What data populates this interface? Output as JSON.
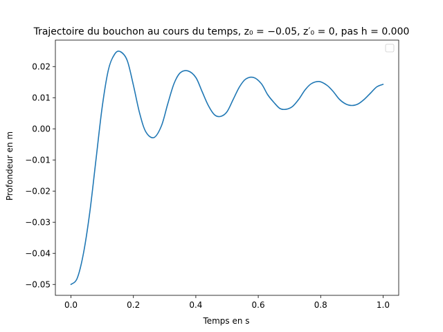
{
  "chart_data": {
    "type": "line",
    "title": "Trajectoire du bouchon au cours du temps, z₀ = −0.05, z′₀ = 0, pas h = 0.000",
    "xlabel": "Temps en s",
    "ylabel": "Profondeur en m",
    "xlim": [
      -0.05,
      1.05
    ],
    "ylim": [
      -0.0535,
      0.0285
    ],
    "xticks": [
      0.0,
      0.2,
      0.4,
      0.6,
      0.8,
      1.0
    ],
    "xtick_labels": [
      "0.0",
      "0.2",
      "0.4",
      "0.6",
      "0.8",
      "1.0"
    ],
    "yticks": [
      -0.05,
      -0.04,
      -0.03,
      -0.02,
      -0.01,
      0.0,
      0.01,
      0.02
    ],
    "ytick_labels": [
      "−0.05",
      "−0.04",
      "−0.03",
      "−0.02",
      "−0.01",
      "0.00",
      "0.01",
      "0.02"
    ],
    "grid": false,
    "legend": "top-right (empty)",
    "series": [
      {
        "color": "#1f77b4",
        "x": [
          0.0,
          0.02,
          0.04,
          0.06,
          0.08,
          0.1,
          0.12,
          0.14,
          0.158,
          0.18,
          0.2,
          0.22,
          0.24,
          0.266,
          0.29,
          0.31,
          0.33,
          0.35,
          0.375,
          0.4,
          0.42,
          0.44,
          0.46,
          0.48,
          0.5,
          0.52,
          0.54,
          0.56,
          0.585,
          0.61,
          0.63,
          0.65,
          0.67,
          0.69,
          0.71,
          0.73,
          0.75,
          0.77,
          0.795,
          0.82,
          0.84,
          0.86,
          0.88,
          0.9,
          0.92,
          0.94,
          0.96,
          0.98,
          1.0
        ],
        "y": [
          -0.05,
          -0.048,
          -0.04,
          -0.027,
          -0.01,
          0.007,
          0.019,
          0.024,
          0.0248,
          0.022,
          0.014,
          0.005,
          -0.001,
          -0.0028,
          0.001,
          0.008,
          0.0145,
          0.018,
          0.0186,
          0.0165,
          0.012,
          0.0075,
          0.0045,
          0.004,
          0.0055,
          0.0095,
          0.0135,
          0.016,
          0.0165,
          0.0145,
          0.011,
          0.0085,
          0.0065,
          0.0063,
          0.0072,
          0.0095,
          0.0125,
          0.0145,
          0.0152,
          0.014,
          0.012,
          0.0095,
          0.008,
          0.0075,
          0.008,
          0.0095,
          0.0115,
          0.0135,
          0.0143
        ]
      }
    ]
  }
}
